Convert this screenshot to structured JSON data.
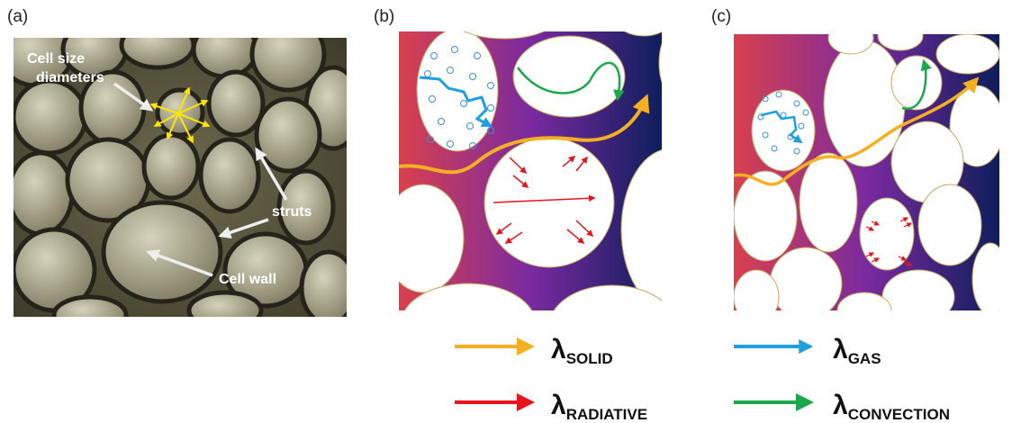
{
  "panels": {
    "a": {
      "label": "(a)",
      "annotations": {
        "cell_size": [
          "Cell size",
          "diameters"
        ],
        "struts": "struts",
        "cell_wall": "Cell wall"
      }
    },
    "b": {
      "label": "(b)"
    },
    "c": {
      "label": "(c)"
    }
  },
  "legend": [
    {
      "symbol": "λ",
      "subscript": "SOLID"
    },
    {
      "symbol": "λ",
      "subscript": "RADIATIVE"
    },
    {
      "symbol": "λ",
      "subscript": "GAS"
    },
    {
      "symbol": "λ",
      "subscript": "CONVECTION"
    }
  ]
}
